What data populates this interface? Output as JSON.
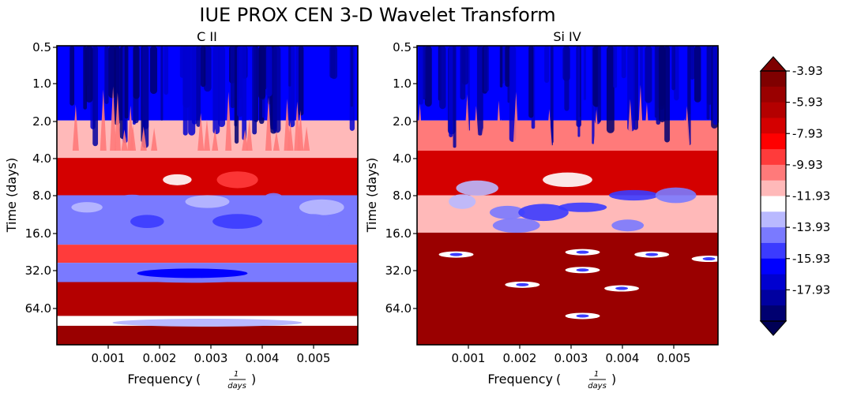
{
  "figure": {
    "title": "IUE PROX CEN 3-D Wavelet Transform"
  },
  "chart_data": [
    {
      "type": "heatmap",
      "title": "C II",
      "xlabel": "Frequency",
      "xlabel_fraction": {
        "numerator": "1",
        "denominator": "days"
      },
      "ylabel": "Time (days)",
      "x_ticks": [
        "0.001",
        "0.002",
        "0.003",
        "0.004",
        "0.005"
      ],
      "y_ticks": [
        "0.5",
        "1.0",
        "2.0",
        "4.0",
        "8.0",
        "16.0",
        "32.0",
        "64.0"
      ],
      "y_scale": "log2",
      "bands": [
        {
          "time_range": [
            0.5,
            2.0
          ],
          "level": -16.5,
          "description": "dominant blue, dark blue streaks"
        },
        {
          "time_range": [
            2.0,
            4.0
          ],
          "level": -11.0,
          "description": "mixed white / light red / light blue"
        },
        {
          "time_range": [
            4.0,
            8.0
          ],
          "level": -7.0,
          "description": "red band with white and blue patches"
        },
        {
          "time_range": [
            8.0,
            20.0
          ],
          "level": -14.0,
          "description": "blue region, ~10-20 days"
        },
        {
          "time_range": [
            20.0,
            28.0
          ],
          "level": -9.0,
          "description": "light red"
        },
        {
          "time_range": [
            28.0,
            40.0
          ],
          "level": -14.5,
          "description": "blue elliptical island centered ~0.003"
        },
        {
          "time_range": [
            40.0,
            75.0
          ],
          "level": -6.0,
          "description": "red"
        },
        {
          "time_range": [
            75.0,
            90.0
          ],
          "level": -12.0,
          "description": "white / light blue thin band"
        },
        {
          "time_range": [
            90.0,
            128.0
          ],
          "level": -5.0,
          "description": "dark red"
        }
      ]
    },
    {
      "type": "heatmap",
      "title": "Si IV",
      "xlabel": "Frequency",
      "xlabel_fraction": {
        "numerator": "1",
        "denominator": "days"
      },
      "ylabel": "Time (days)",
      "x_ticks": [
        "0.001",
        "0.002",
        "0.003",
        "0.004",
        "0.005"
      ],
      "y_ticks": [
        "0.5",
        "1.0",
        "2.0",
        "4.0",
        "8.0",
        "16.0",
        "32.0",
        "64.0"
      ],
      "y_scale": "log2",
      "bands": [
        {
          "time_range": [
            0.5,
            2.0
          ],
          "level": -16.5,
          "description": "dominant blue"
        },
        {
          "time_range": [
            2.0,
            3.5
          ],
          "level": -10.5,
          "description": "white / light red spikes"
        },
        {
          "time_range": [
            3.5,
            8.0
          ],
          "level": -7.5,
          "description": "red / light red"
        },
        {
          "time_range": [
            8.0,
            16.0
          ],
          "level": -11.0,
          "description": "mixed light red with small blue islands"
        },
        {
          "time_range": [
            16.0,
            128.0
          ],
          "level": -5.0,
          "description": "red to dark red with small white/blue islands"
        }
      ]
    }
  ],
  "colorbar": {
    "levels": [
      "-3.93",
      "-5.93",
      "-7.93",
      "-9.93",
      "-11.93",
      "-13.93",
      "-15.93",
      "-17.93"
    ],
    "colors": [
      "#7f0000",
      "#9a0000",
      "#b40000",
      "#d40000",
      "#ff0000",
      "#ff3b3b",
      "#ff7a7a",
      "#ffb9b9",
      "#ffffff",
      "#b9b9ff",
      "#7a7aff",
      "#3b3bff",
      "#0000ff",
      "#0000d0",
      "#0000a0",
      "#000070"
    ],
    "extend_top": "#7f0000",
    "extend_bottom": "#000055"
  }
}
